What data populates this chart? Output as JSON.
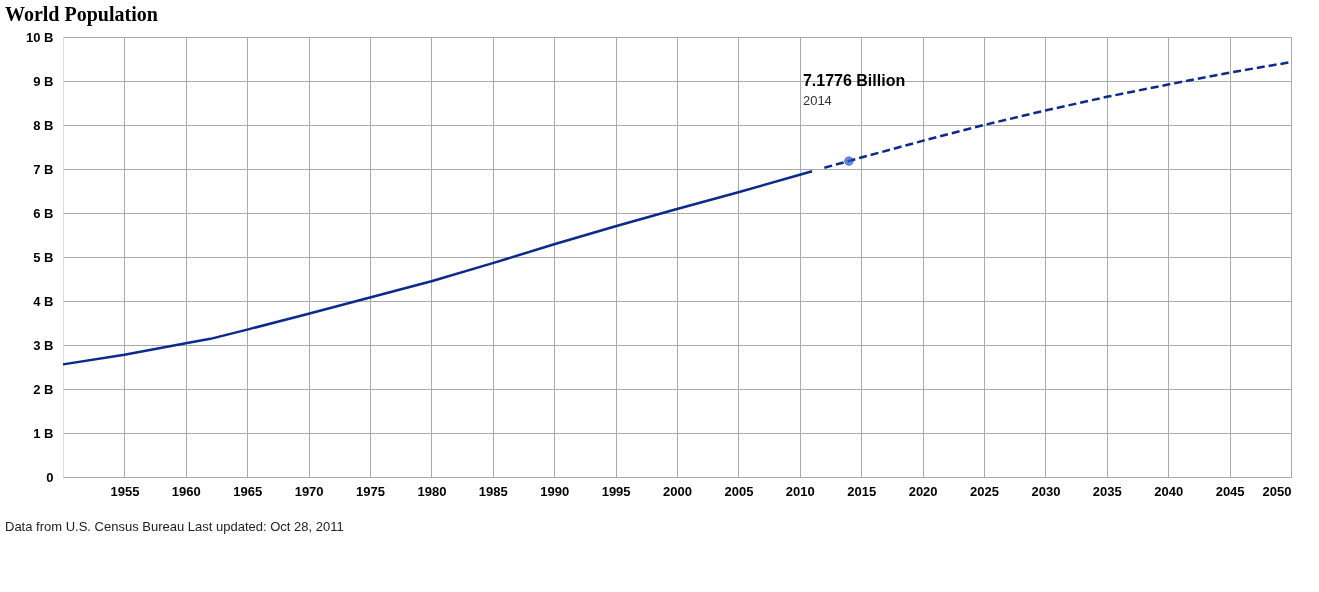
{
  "chart_data": {
    "type": "line",
    "title": "World Population",
    "xlim": [
      1950,
      2050
    ],
    "xticks": [
      1955,
      1960,
      1965,
      1970,
      1975,
      1980,
      1985,
      1990,
      1995,
      2000,
      2005,
      2010,
      2015,
      2020,
      2025,
      2030,
      2035,
      2040,
      2045,
      2050
    ],
    "ylim": [
      0,
      10
    ],
    "yticks": [
      0,
      {
        "value": 1,
        "label": "1 B"
      },
      {
        "value": 2,
        "label": "2 B"
      },
      {
        "value": 3,
        "label": "3 B"
      },
      {
        "value": 4,
        "label": "4 B"
      },
      {
        "value": 5,
        "label": "5 B"
      },
      {
        "value": 6,
        "label": "6 B"
      },
      {
        "value": 7,
        "label": "7 B"
      },
      {
        "value": 8,
        "label": "8 B"
      },
      {
        "value": 9,
        "label": "9 B"
      },
      {
        "value": 10,
        "label": "10 B"
      }
    ],
    "grid": true,
    "series": [
      {
        "color": "#0b2a8c",
        "line_style": "solid",
        "x": [
          1950,
          1955,
          1960,
          1962,
          1965,
          1970,
          1975,
          1980,
          1985,
          1990,
          1995,
          2000,
          2005,
          2010,
          2011
        ],
        "values": [
          2.56,
          2.78,
          3.04,
          3.14,
          3.35,
          3.71,
          4.08,
          4.45,
          4.86,
          5.29,
          5.7,
          6.09,
          6.47,
          6.87,
          6.95
        ]
      },
      {
        "color": "#0b2a8c",
        "line_style": "dashed",
        "x": [
          2012,
          2014,
          2015,
          2020,
          2025,
          2030,
          2035,
          2040,
          2045,
          2050
        ],
        "values": [
          7.03,
          7.18,
          7.26,
          7.64,
          8.0,
          8.33,
          8.64,
          8.92,
          9.19,
          9.43
        ]
      },
      {
        "type": "scatter",
        "marker": "circle",
        "color": "#2a5bd7",
        "x": [
          2014
        ],
        "values": [
          7.18
        ]
      }
    ],
    "annotations": [
      "7.1776 Billion",
      "2014",
      "Data from U.S. Census Bureau    Last updated: Oct 28, 2011"
    ]
  }
}
